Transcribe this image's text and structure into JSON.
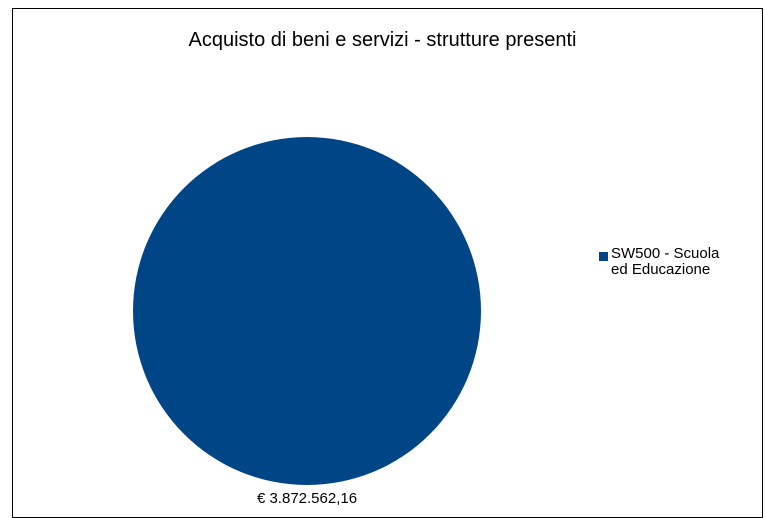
{
  "chart_data": {
    "type": "pie",
    "title": "Acquisto di beni e servizi - strutture presenti",
    "slices": [
      {
        "label": "SW500 - Scuola ed Educazione",
        "value": 3872562.16,
        "data_label": "€ 3.872.562,16",
        "color": "#004586"
      }
    ],
    "legend_position": "right",
    "border_color": "#000000"
  }
}
